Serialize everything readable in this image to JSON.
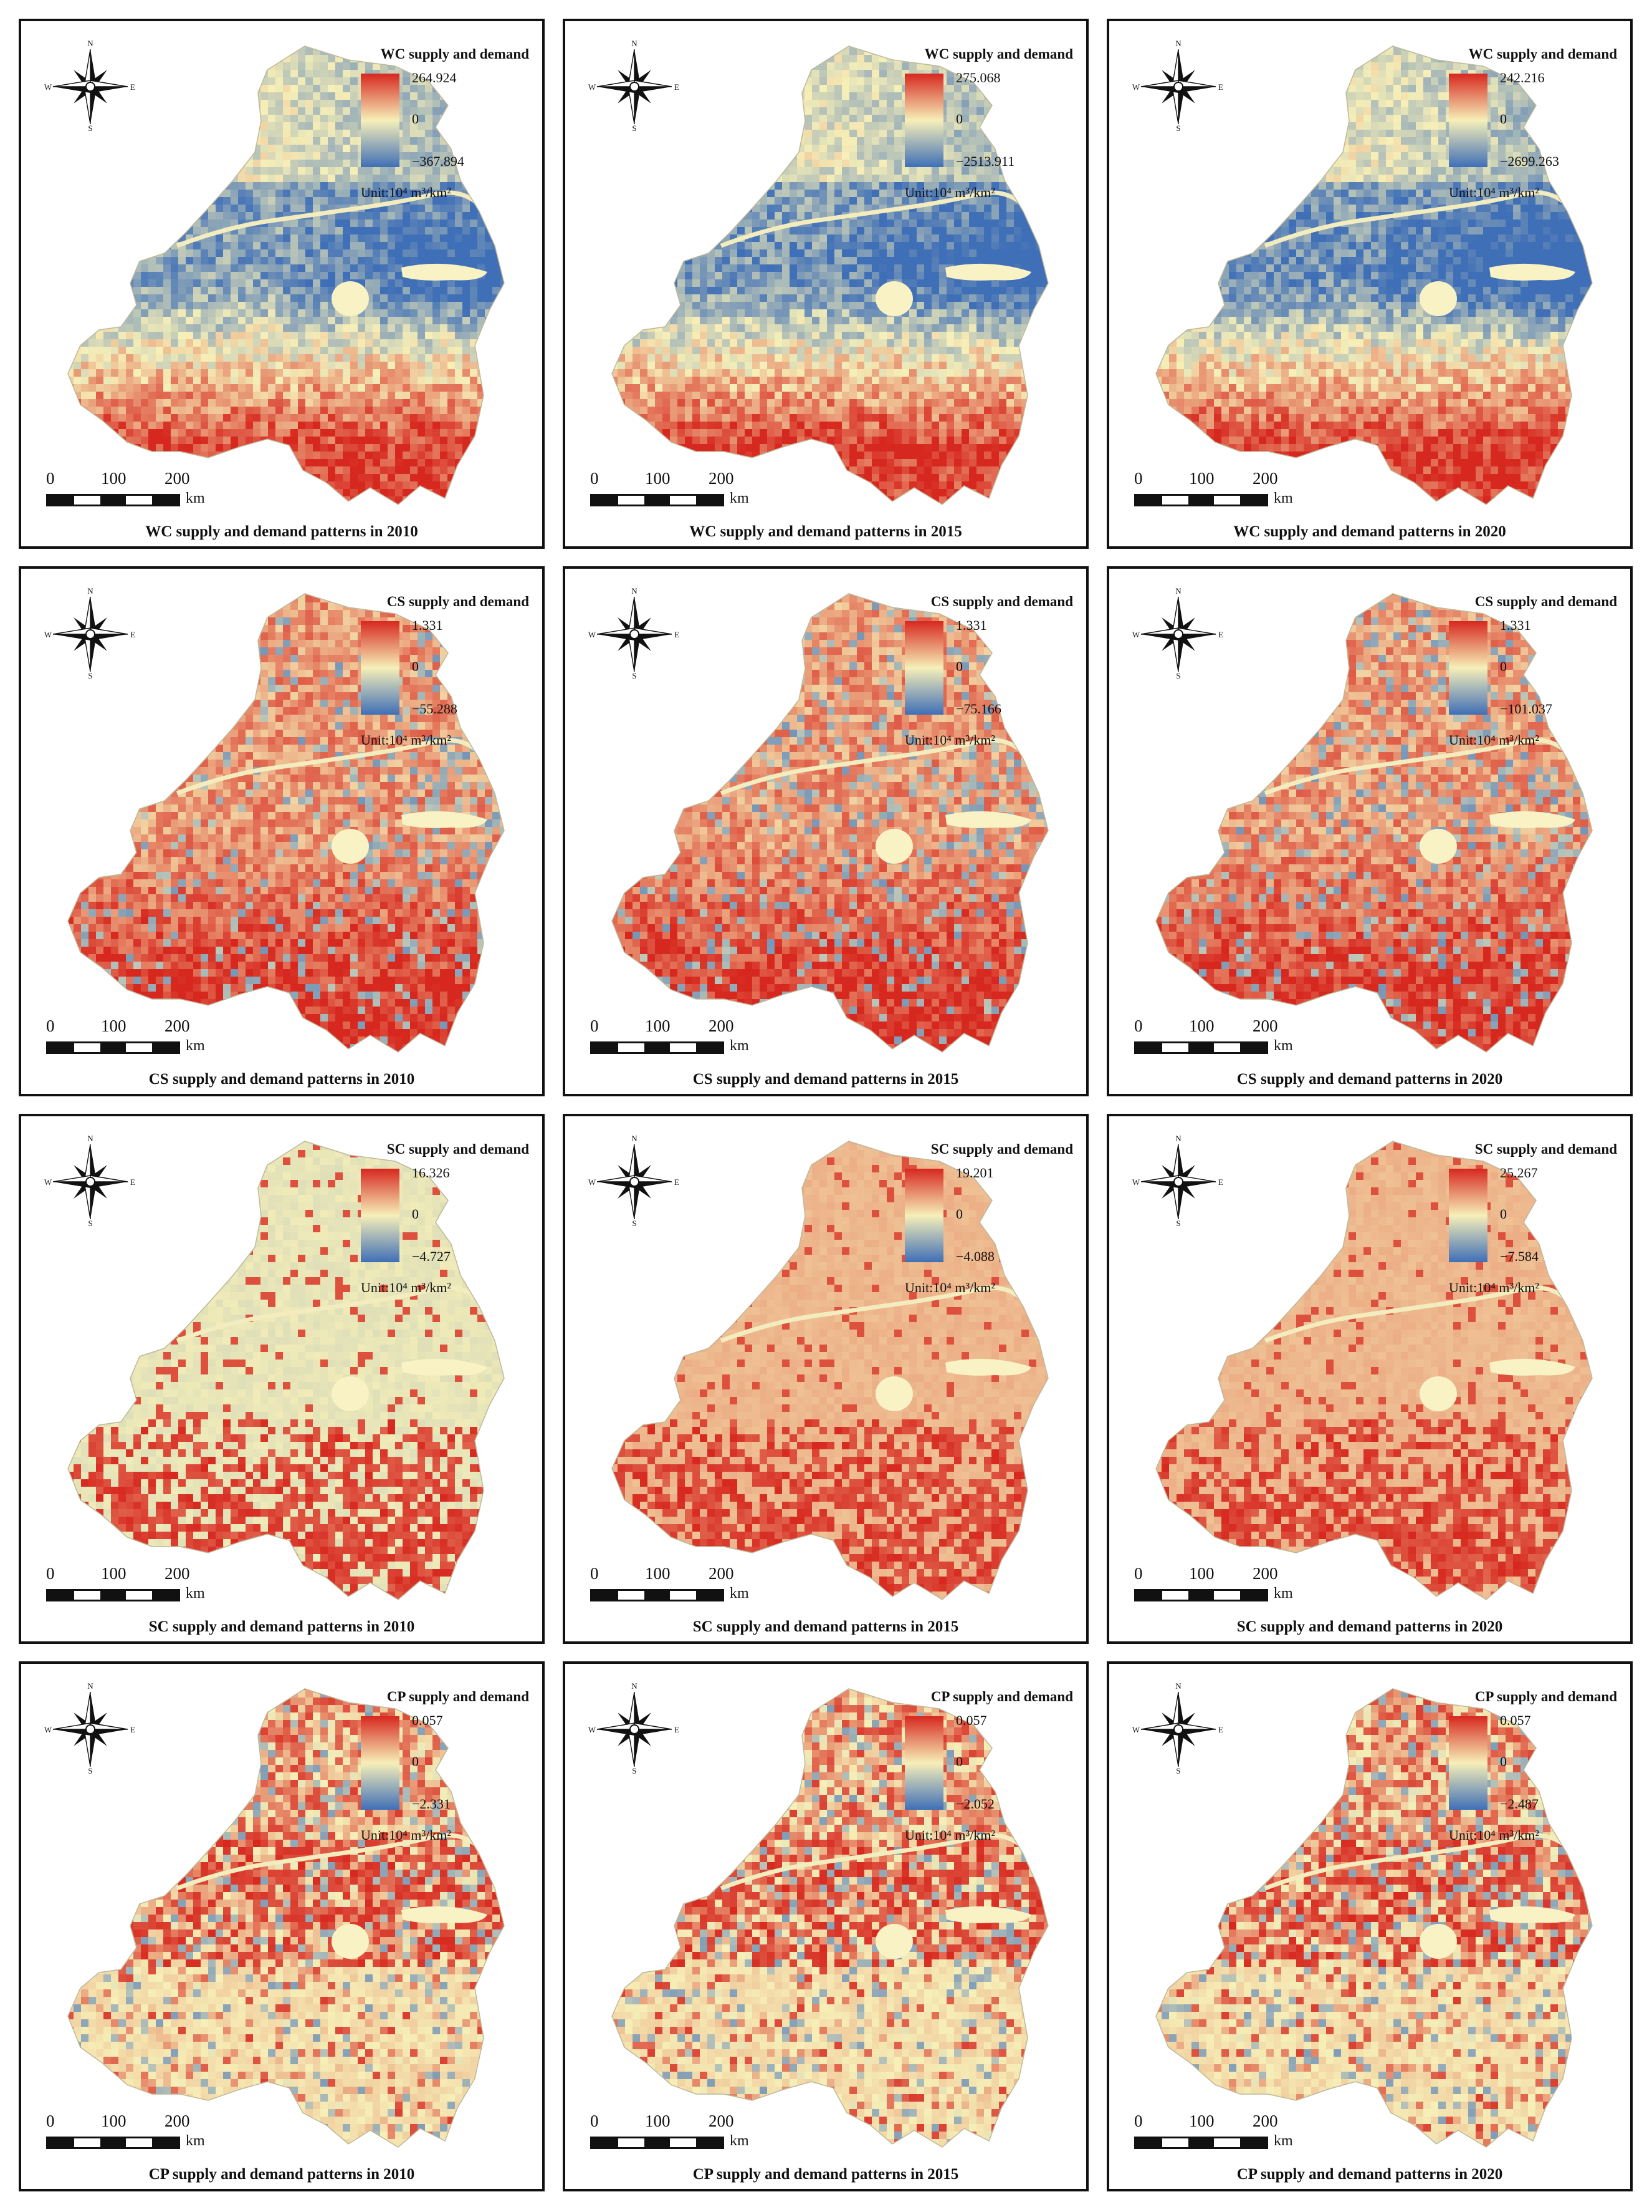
{
  "compass": {
    "n": "N",
    "s": "S",
    "e": "E",
    "w": "W"
  },
  "scale": {
    "ticks": [
      "0",
      "100",
      "200"
    ],
    "unit": "km"
  },
  "legend_unit": "Unit:10⁴ m³/km²",
  "colors": {
    "high": "#d7281f",
    "mid": "#f6efb8",
    "low": "#3f6fb7",
    "outline": "#111111"
  },
  "rows": [
    {
      "service": "WC",
      "legend_title": "WC supply and demand",
      "pattern": "wc",
      "panels": [
        {
          "year": "2010",
          "max": "264.924",
          "zero": "0",
          "min": "−367.894",
          "caption": "WC supply and demand patterns in 2010"
        },
        {
          "year": "2015",
          "max": "275.068",
          "zero": "0",
          "min": "−2513.911",
          "caption": "WC supply and demand patterns in 2015"
        },
        {
          "year": "2020",
          "max": "242.216",
          "zero": "0",
          "min": "−2699.263",
          "caption": "WC supply and demand patterns in 2020"
        }
      ]
    },
    {
      "service": "CS",
      "legend_title": "CS supply and demand",
      "pattern": "cs",
      "panels": [
        {
          "year": "2010",
          "max": "1.331",
          "zero": "0",
          "min": "−55.288",
          "caption": "CS supply and demand patterns in 2010"
        },
        {
          "year": "2015",
          "max": "1.331",
          "zero": "0",
          "min": "−75.166",
          "caption": "CS supply and demand patterns in 2015"
        },
        {
          "year": "2020",
          "max": "1.331",
          "zero": "0",
          "min": "−101.037",
          "caption": "CS supply and demand patterns in 2020"
        }
      ]
    },
    {
      "service": "SC",
      "legend_title": "SC supply and demand",
      "pattern": "sc",
      "panels": [
        {
          "year": "2010",
          "max": "16.326",
          "zero": "0",
          "min": "−4.727",
          "caption": "SC supply and demand patterns in 2010"
        },
        {
          "year": "2015",
          "max": "19.201",
          "zero": "0",
          "min": "−4.088",
          "caption": "SC supply and demand patterns in 2015"
        },
        {
          "year": "2020",
          "max": "25.267",
          "zero": "0",
          "min": "−7.584",
          "caption": "SC supply and demand patterns in 2020"
        }
      ]
    },
    {
      "service": "CP",
      "legend_title": "CP supply and demand",
      "pattern": "cp",
      "panels": [
        {
          "year": "2010",
          "max": "0.057",
          "zero": "0",
          "min": "−2.331",
          "caption": "CP supply and demand patterns in 2010"
        },
        {
          "year": "2015",
          "max": "0.057",
          "zero": "0",
          "min": "−2.052",
          "caption": "CP supply and demand patterns in 2015"
        },
        {
          "year": "2020",
          "max": "0.057",
          "zero": "0",
          "min": "−2.487",
          "caption": "CP supply and demand patterns in 2020"
        }
      ]
    }
  ]
}
